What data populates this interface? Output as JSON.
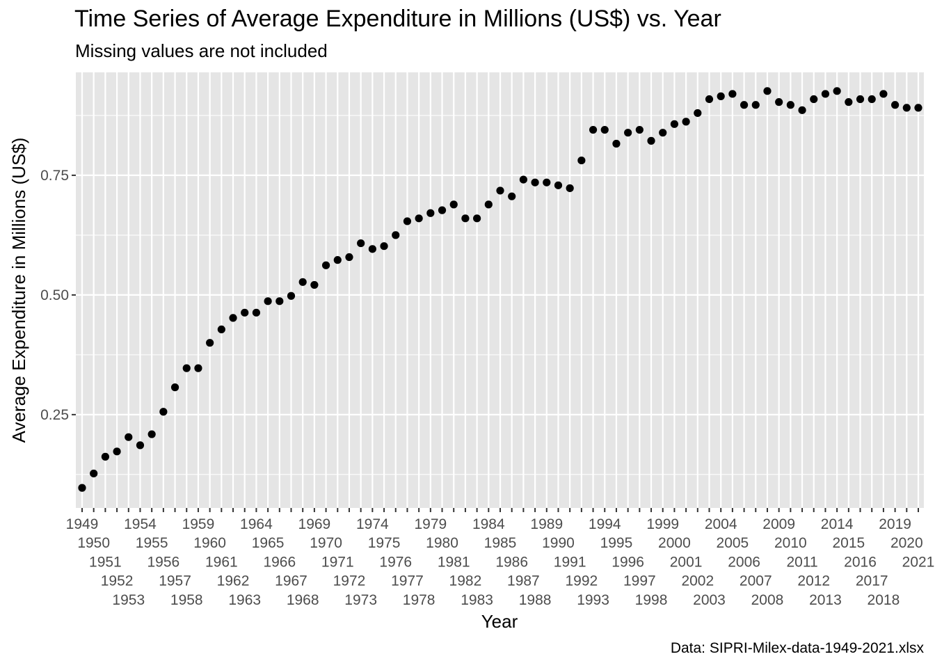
{
  "chart_data": {
    "type": "scatter",
    "title": "Time Series of Average Expenditure in Millions (US$) vs. Year",
    "subtitle": "Missing values are not included",
    "caption": "Data: SIPRI-Milex-data-1949-2021.xlsx",
    "xlabel": "Year",
    "ylabel": "Average Expenditure in Millions (US$)",
    "xlim": [
      1949,
      2021
    ],
    "ylim": [
      0.055,
      0.965
    ],
    "y_ticks": [
      "0.25",
      "0.50",
      "0.75"
    ],
    "grid": true,
    "background": "#e5e5e5",
    "grid_color": "#ffffff",
    "point_color": "#000000",
    "x": [
      1949,
      1950,
      1951,
      1952,
      1953,
      1954,
      1955,
      1956,
      1957,
      1958,
      1959,
      1960,
      1961,
      1962,
      1963,
      1964,
      1965,
      1966,
      1967,
      1968,
      1969,
      1970,
      1971,
      1972,
      1973,
      1974,
      1975,
      1976,
      1977,
      1978,
      1979,
      1980,
      1981,
      1982,
      1983,
      1984,
      1985,
      1986,
      1987,
      1988,
      1989,
      1990,
      1991,
      1992,
      1993,
      1994,
      1995,
      1996,
      1997,
      1998,
      1999,
      2000,
      2001,
      2002,
      2003,
      2004,
      2005,
      2006,
      2007,
      2008,
      2009,
      2010,
      2011,
      2012,
      2013,
      2014,
      2015,
      2016,
      2017,
      2018,
      2019,
      2020,
      2021
    ],
    "y": [
      0.097,
      0.127,
      0.162,
      0.173,
      0.203,
      0.186,
      0.209,
      0.256,
      0.307,
      0.347,
      0.347,
      0.4,
      0.428,
      0.452,
      0.463,
      0.463,
      0.487,
      0.487,
      0.498,
      0.527,
      0.521,
      0.562,
      0.573,
      0.579,
      0.608,
      0.596,
      0.602,
      0.625,
      0.654,
      0.66,
      0.671,
      0.677,
      0.689,
      0.66,
      0.66,
      0.689,
      0.718,
      0.706,
      0.741,
      0.735,
      0.735,
      0.729,
      0.723,
      0.781,
      0.845,
      0.845,
      0.816,
      0.839,
      0.845,
      0.822,
      0.839,
      0.857,
      0.862,
      0.88,
      0.909,
      0.915,
      0.92,
      0.897,
      0.897,
      0.926,
      0.903,
      0.897,
      0.886,
      0.909,
      0.92,
      0.926,
      0.903,
      0.909,
      0.909,
      0.92,
      0.897,
      0.891,
      0.891
    ]
  }
}
